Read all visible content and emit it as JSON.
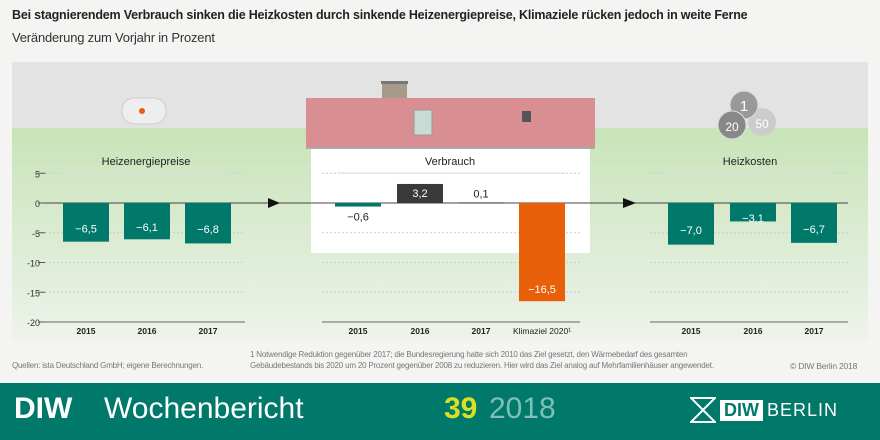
{
  "title": "Bei stagnierendem Verbrauch sinken die Heizkosten durch sinkende Heizenergiepreise, Klimaziele rücken jedoch in weite Ferne",
  "subtitle": "Veränderung zum Vorjahr in Prozent",
  "chart_data": {
    "type": "bar",
    "ylim": [
      -20,
      5
    ],
    "yticks": [
      "5",
      "0",
      "-5",
      "-10",
      "-15",
      "-20"
    ],
    "ytick_values": [
      5,
      0,
      -5,
      -10,
      -15,
      -20
    ],
    "panels": [
      {
        "title": "Heizenergiepreise",
        "categories": [
          "2015",
          "2016",
          "2017"
        ],
        "values": [
          -6.5,
          -6.1,
          -6.8
        ],
        "labels": [
          "−6,5",
          "−6,1",
          "−6,8"
        ],
        "colors": [
          "#00796b",
          "#00796b",
          "#00796b"
        ]
      },
      {
        "title": "Verbrauch",
        "categories": [
          "2015",
          "2016",
          "2017",
          "Klimaziel 2020¹"
        ],
        "values": [
          -0.6,
          3.2,
          0.1,
          -16.5
        ],
        "labels": [
          "−0,6",
          "3,2",
          "0,1",
          "−16,5"
        ],
        "colors": [
          "#00796b",
          "#3a3a3a",
          "#3a3a3a",
          "#e8600a"
        ]
      },
      {
        "title": "Heizkosten",
        "categories": [
          "2015",
          "2016",
          "2017"
        ],
        "values": [
          -7.0,
          -3.1,
          -6.7
        ],
        "labels": [
          "−7,0",
          "−3,1",
          "−6,7"
        ],
        "colors": [
          "#00796b",
          "#00796b",
          "#00796b"
        ]
      }
    ]
  },
  "sources": "Quellen: ista Deutschland GmbH; eigene Berechnungen.",
  "footnote_line1": "1  Notwendige Reduktion gegenüber 2017; die Bundesregierung hatte sich 2010 das Ziel gesetzt, den Wärmebedarf des gesamten",
  "footnote_line2": "Gebäudebestands bis 2020 um 20 Prozent gegenüber 2008 zu reduzieren. Hier wird das Ziel analog auf Mehrfamilienhäuser angewendet.",
  "copyright": "© DIW Berlin 2018",
  "footer": {
    "brand": "DIW",
    "publication": "Wochenbericht",
    "issue": "39",
    "year": "2018",
    "logo_diw": "DIW",
    "logo_berlin": "BERLIN"
  },
  "coins": [
    "1",
    "20",
    "50"
  ]
}
